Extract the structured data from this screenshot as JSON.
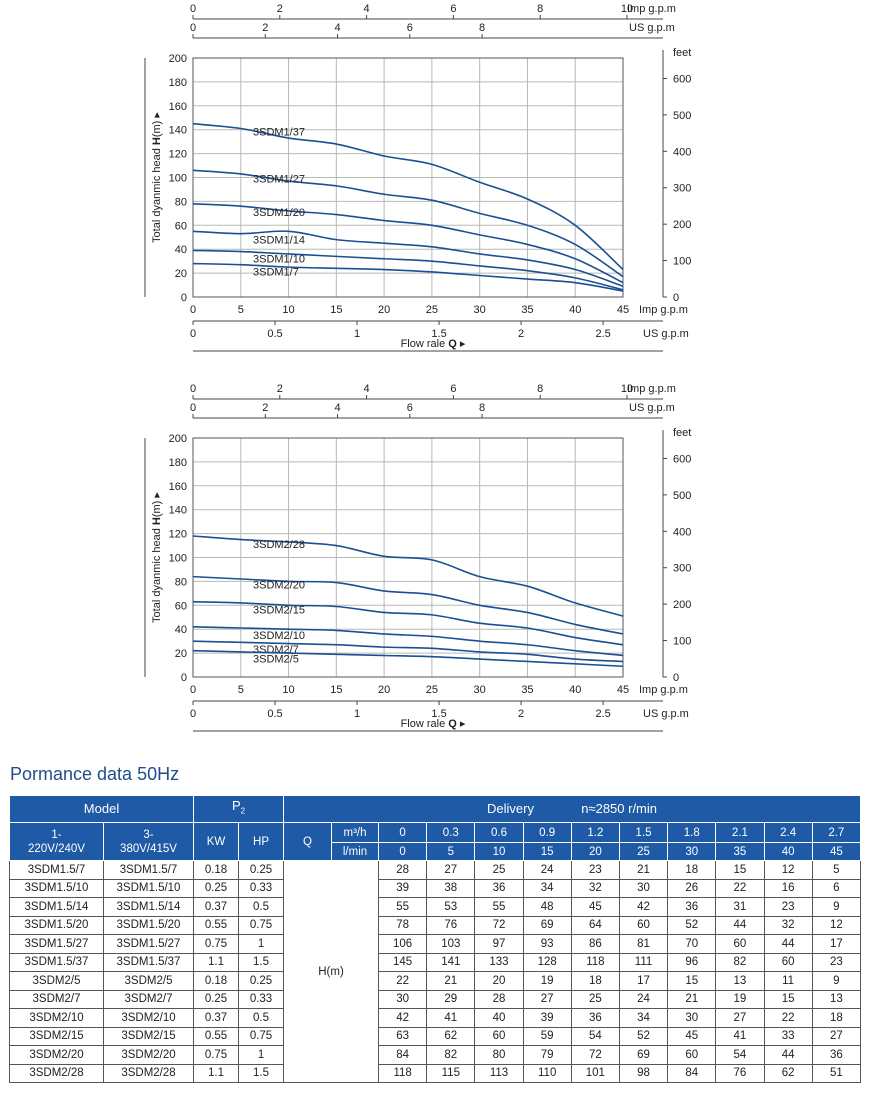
{
  "charts": {
    "imp_label": "Imp g.p.m",
    "us_label": "US g.p.m",
    "feet_label": "feet",
    "ylabel_pre": "Total dyanmic head ",
    "ylabel_bold": "H",
    "ylabel_post": "(m) ▸",
    "xlabel_pre": "Flow rale ",
    "xlabel_bold": "Q",
    "xlabel_post": " ▸",
    "imp_ticks": [
      "0",
      "2",
      "4",
      "6",
      "8",
      "10"
    ],
    "us_top_ticks": [
      "0",
      "2",
      "4",
      "6",
      "8"
    ],
    "us_bottom_ticks": [
      "0",
      "0.5",
      "1",
      "1.5",
      "2",
      "2.5"
    ],
    "feet_ticks": [
      "0",
      "100",
      "200",
      "300",
      "400",
      "500",
      "600"
    ]
  },
  "chart_data": [
    {
      "type": "line",
      "xlabel": "Flow rale Q",
      "ylabel": "Total dyanmic head H(m)",
      "xlim": [
        0,
        45
      ],
      "ylim": [
        0,
        200
      ],
      "x_ticks": [
        "0",
        "5",
        "10",
        "15",
        "20",
        "25",
        "30",
        "35",
        "40",
        "45"
      ],
      "y_ticks": [
        "0",
        "20",
        "40",
        "60",
        "80",
        "100",
        "120",
        "140",
        "160",
        "180",
        "200"
      ],
      "x_unit": "l/min",
      "grid": true,
      "x": [
        0,
        5,
        10,
        15,
        20,
        25,
        30,
        35,
        40,
        45
      ],
      "series": [
        {
          "name": "3SDM1/37",
          "values": [
            145,
            141,
            133,
            128,
            118,
            111,
            96,
            82,
            60,
            23
          ]
        },
        {
          "name": "3SDM1/27",
          "values": [
            106,
            103,
            97,
            93,
            86,
            81,
            70,
            60,
            44,
            17
          ]
        },
        {
          "name": "3SDM1/20",
          "values": [
            78,
            76,
            72,
            69,
            64,
            60,
            52,
            44,
            32,
            12
          ]
        },
        {
          "name": "3SDM1/14",
          "values": [
            55,
            53,
            55,
            48,
            45,
            42,
            36,
            31,
            23,
            9
          ]
        },
        {
          "name": "3SDM1/10",
          "values": [
            39,
            38,
            36,
            34,
            32,
            30,
            26,
            22,
            16,
            6
          ]
        },
        {
          "name": "3SDM1/7",
          "values": [
            28,
            27,
            25,
            24,
            23,
            21,
            18,
            15,
            12,
            5
          ]
        }
      ]
    },
    {
      "type": "line",
      "xlabel": "Flow rale Q",
      "ylabel": "Total dyanmic head H(m)",
      "xlim": [
        0,
        45
      ],
      "ylim": [
        0,
        200
      ],
      "x_ticks": [
        "0",
        "5",
        "10",
        "15",
        "20",
        "25",
        "30",
        "35",
        "40",
        "45"
      ],
      "y_ticks": [
        "0",
        "20",
        "40",
        "60",
        "80",
        "100",
        "120",
        "140",
        "160",
        "180",
        "200"
      ],
      "x_unit": "l/min",
      "grid": true,
      "x": [
        0,
        5,
        10,
        15,
        20,
        25,
        30,
        35,
        40,
        45
      ],
      "series": [
        {
          "name": "3SDM2/28",
          "values": [
            118,
            115,
            113,
            110,
            101,
            98,
            84,
            76,
            62,
            51
          ]
        },
        {
          "name": "3SDM2/20",
          "values": [
            84,
            82,
            80,
            79,
            72,
            69,
            60,
            54,
            44,
            36
          ]
        },
        {
          "name": "3SDM2/15",
          "values": [
            63,
            62,
            60,
            59,
            54,
            52,
            45,
            41,
            33,
            27
          ]
        },
        {
          "name": "3SDM2/10",
          "values": [
            42,
            41,
            40,
            39,
            36,
            34,
            30,
            27,
            22,
            18
          ]
        },
        {
          "name": "3SDM2/7",
          "values": [
            30,
            29,
            28,
            27,
            25,
            24,
            21,
            19,
            15,
            13
          ]
        },
        {
          "name": "3SDM2/5",
          "values": [
            22,
            21,
            20,
            19,
            18,
            17,
            15,
            13,
            11,
            9
          ]
        }
      ]
    }
  ],
  "table": {
    "title": "Pormance data 50Hz",
    "header": {
      "model": "Model",
      "p2_main": "P",
      "p2_sub": "2",
      "delivery": "Delivery",
      "speed": "n≈2850 r/min",
      "col_1ph": "1-\n220V/240V",
      "col_3ph": "3-\n380V/415V",
      "kw": "KW",
      "hp": "HP",
      "q": "Q",
      "m3h": "m³/h",
      "lmin": "l/min"
    },
    "m3h_values": [
      "0",
      "0.3",
      "0.6",
      "0.9",
      "1.2",
      "1.5",
      "1.8",
      "2.1",
      "2.4",
      "2.7"
    ],
    "lmin_values": [
      "0",
      "5",
      "10",
      "15",
      "20",
      "25",
      "30",
      "35",
      "40",
      "45"
    ],
    "h_label": "H(m)",
    "rows": [
      {
        "m1": "3SDM1.5/7",
        "m3": "3SDM1.5/7",
        "kw": "0.18",
        "hp": "0.25",
        "h": [
          "28",
          "27",
          "25",
          "24",
          "23",
          "21",
          "18",
          "15",
          "12",
          "5"
        ]
      },
      {
        "m1": "3SDM1.5/10",
        "m3": "3SDM1.5/10",
        "kw": "0.25",
        "hp": "0.33",
        "h": [
          "39",
          "38",
          "36",
          "34",
          "32",
          "30",
          "26",
          "22",
          "16",
          "6"
        ]
      },
      {
        "m1": "3SDM1.5/14",
        "m3": "3SDM1.5/14",
        "kw": "0.37",
        "hp": "0.5",
        "h": [
          "55",
          "53",
          "55",
          "48",
          "45",
          "42",
          "36",
          "31",
          "23",
          "9"
        ]
      },
      {
        "m1": "3SDM1.5/20",
        "m3": "3SDM1.5/20",
        "kw": "0.55",
        "hp": "0.75",
        "h": [
          "78",
          "76",
          "72",
          "69",
          "64",
          "60",
          "52",
          "44",
          "32",
          "12"
        ]
      },
      {
        "m1": "3SDM1.5/27",
        "m3": "3SDM1.5/27",
        "kw": "0.75",
        "hp": "1",
        "h": [
          "106",
          "103",
          "97",
          "93",
          "86",
          "81",
          "70",
          "60",
          "44",
          "17"
        ]
      },
      {
        "m1": "3SDM1.5/37",
        "m3": "3SDM1.5/37",
        "kw": "1.1",
        "hp": "1.5",
        "h": [
          "145",
          "141",
          "133",
          "128",
          "118",
          "111",
          "96",
          "82",
          "60",
          "23"
        ]
      },
      {
        "m1": "3SDM2/5",
        "m3": "3SDM2/5",
        "kw": "0.18",
        "hp": "0.25",
        "h": [
          "22",
          "21",
          "20",
          "19",
          "18",
          "17",
          "15",
          "13",
          "11",
          "9"
        ]
      },
      {
        "m1": "3SDM2/7",
        "m3": "3SDM2/7",
        "kw": "0.25",
        "hp": "0.33",
        "h": [
          "30",
          "29",
          "28",
          "27",
          "25",
          "24",
          "21",
          "19",
          "15",
          "13"
        ]
      },
      {
        "m1": "3SDM2/10",
        "m3": "3SDM2/10",
        "kw": "0.37",
        "hp": "0.5",
        "h": [
          "42",
          "41",
          "40",
          "39",
          "36",
          "34",
          "30",
          "27",
          "22",
          "18"
        ]
      },
      {
        "m1": "3SDM2/15",
        "m3": "3SDM2/15",
        "kw": "0.55",
        "hp": "0.75",
        "h": [
          "63",
          "62",
          "60",
          "59",
          "54",
          "52",
          "45",
          "41",
          "33",
          "27"
        ]
      },
      {
        "m1": "3SDM2/20",
        "m3": "3SDM2/20",
        "kw": "0.75",
        "hp": "1",
        "h": [
          "84",
          "82",
          "80",
          "79",
          "72",
          "69",
          "60",
          "54",
          "44",
          "36"
        ]
      },
      {
        "m1": "3SDM2/28",
        "m3": "3SDM2/28",
        "kw": "1.1",
        "hp": "1.5",
        "h": [
          "118",
          "115",
          "113",
          "110",
          "101",
          "98",
          "84",
          "76",
          "62",
          "51"
        ]
      }
    ]
  },
  "colors": {
    "curve": "#1b4f93",
    "grid": "#b8b8b8",
    "header_bg": "#1f5aa6",
    "title": "#1f4e8c"
  }
}
